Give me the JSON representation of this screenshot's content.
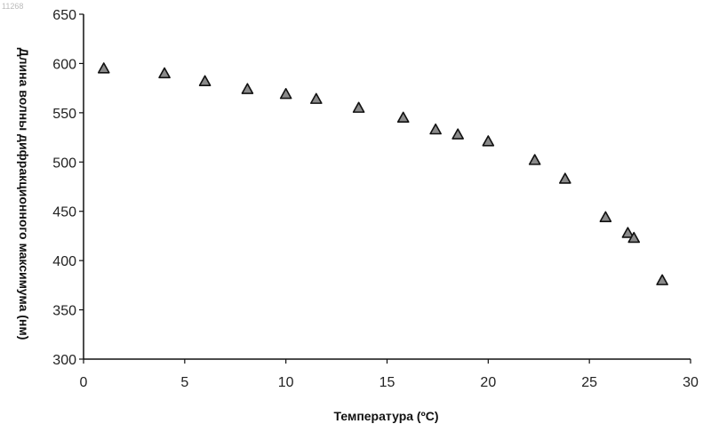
{
  "corner_mark": "11268",
  "chart_data": {
    "type": "scatter",
    "title": "",
    "xlabel": "Температура (ºC)",
    "ylabel": "Длина волны дифракционного максимума (нм)",
    "xlim": [
      0,
      30
    ],
    "ylim": [
      300,
      650
    ],
    "xticks": [
      0,
      5,
      10,
      15,
      20,
      25,
      30
    ],
    "yticks": [
      300,
      350,
      400,
      450,
      500,
      550,
      600,
      650
    ],
    "marker": "triangle",
    "marker_color": "#8a8a8a",
    "grid": false,
    "legend": "none",
    "points": [
      {
        "x": 1.0,
        "y": 595
      },
      {
        "x": 4.0,
        "y": 590
      },
      {
        "x": 6.0,
        "y": 582
      },
      {
        "x": 8.1,
        "y": 574
      },
      {
        "x": 10.0,
        "y": 569
      },
      {
        "x": 11.5,
        "y": 564
      },
      {
        "x": 13.6,
        "y": 555
      },
      {
        "x": 15.8,
        "y": 545
      },
      {
        "x": 17.4,
        "y": 533
      },
      {
        "x": 18.5,
        "y": 528
      },
      {
        "x": 20.0,
        "y": 521
      },
      {
        "x": 22.3,
        "y": 502
      },
      {
        "x": 23.8,
        "y": 483
      },
      {
        "x": 25.8,
        "y": 444
      },
      {
        "x": 26.9,
        "y": 428
      },
      {
        "x": 27.2,
        "y": 423
      },
      {
        "x": 28.6,
        "y": 380
      }
    ]
  }
}
